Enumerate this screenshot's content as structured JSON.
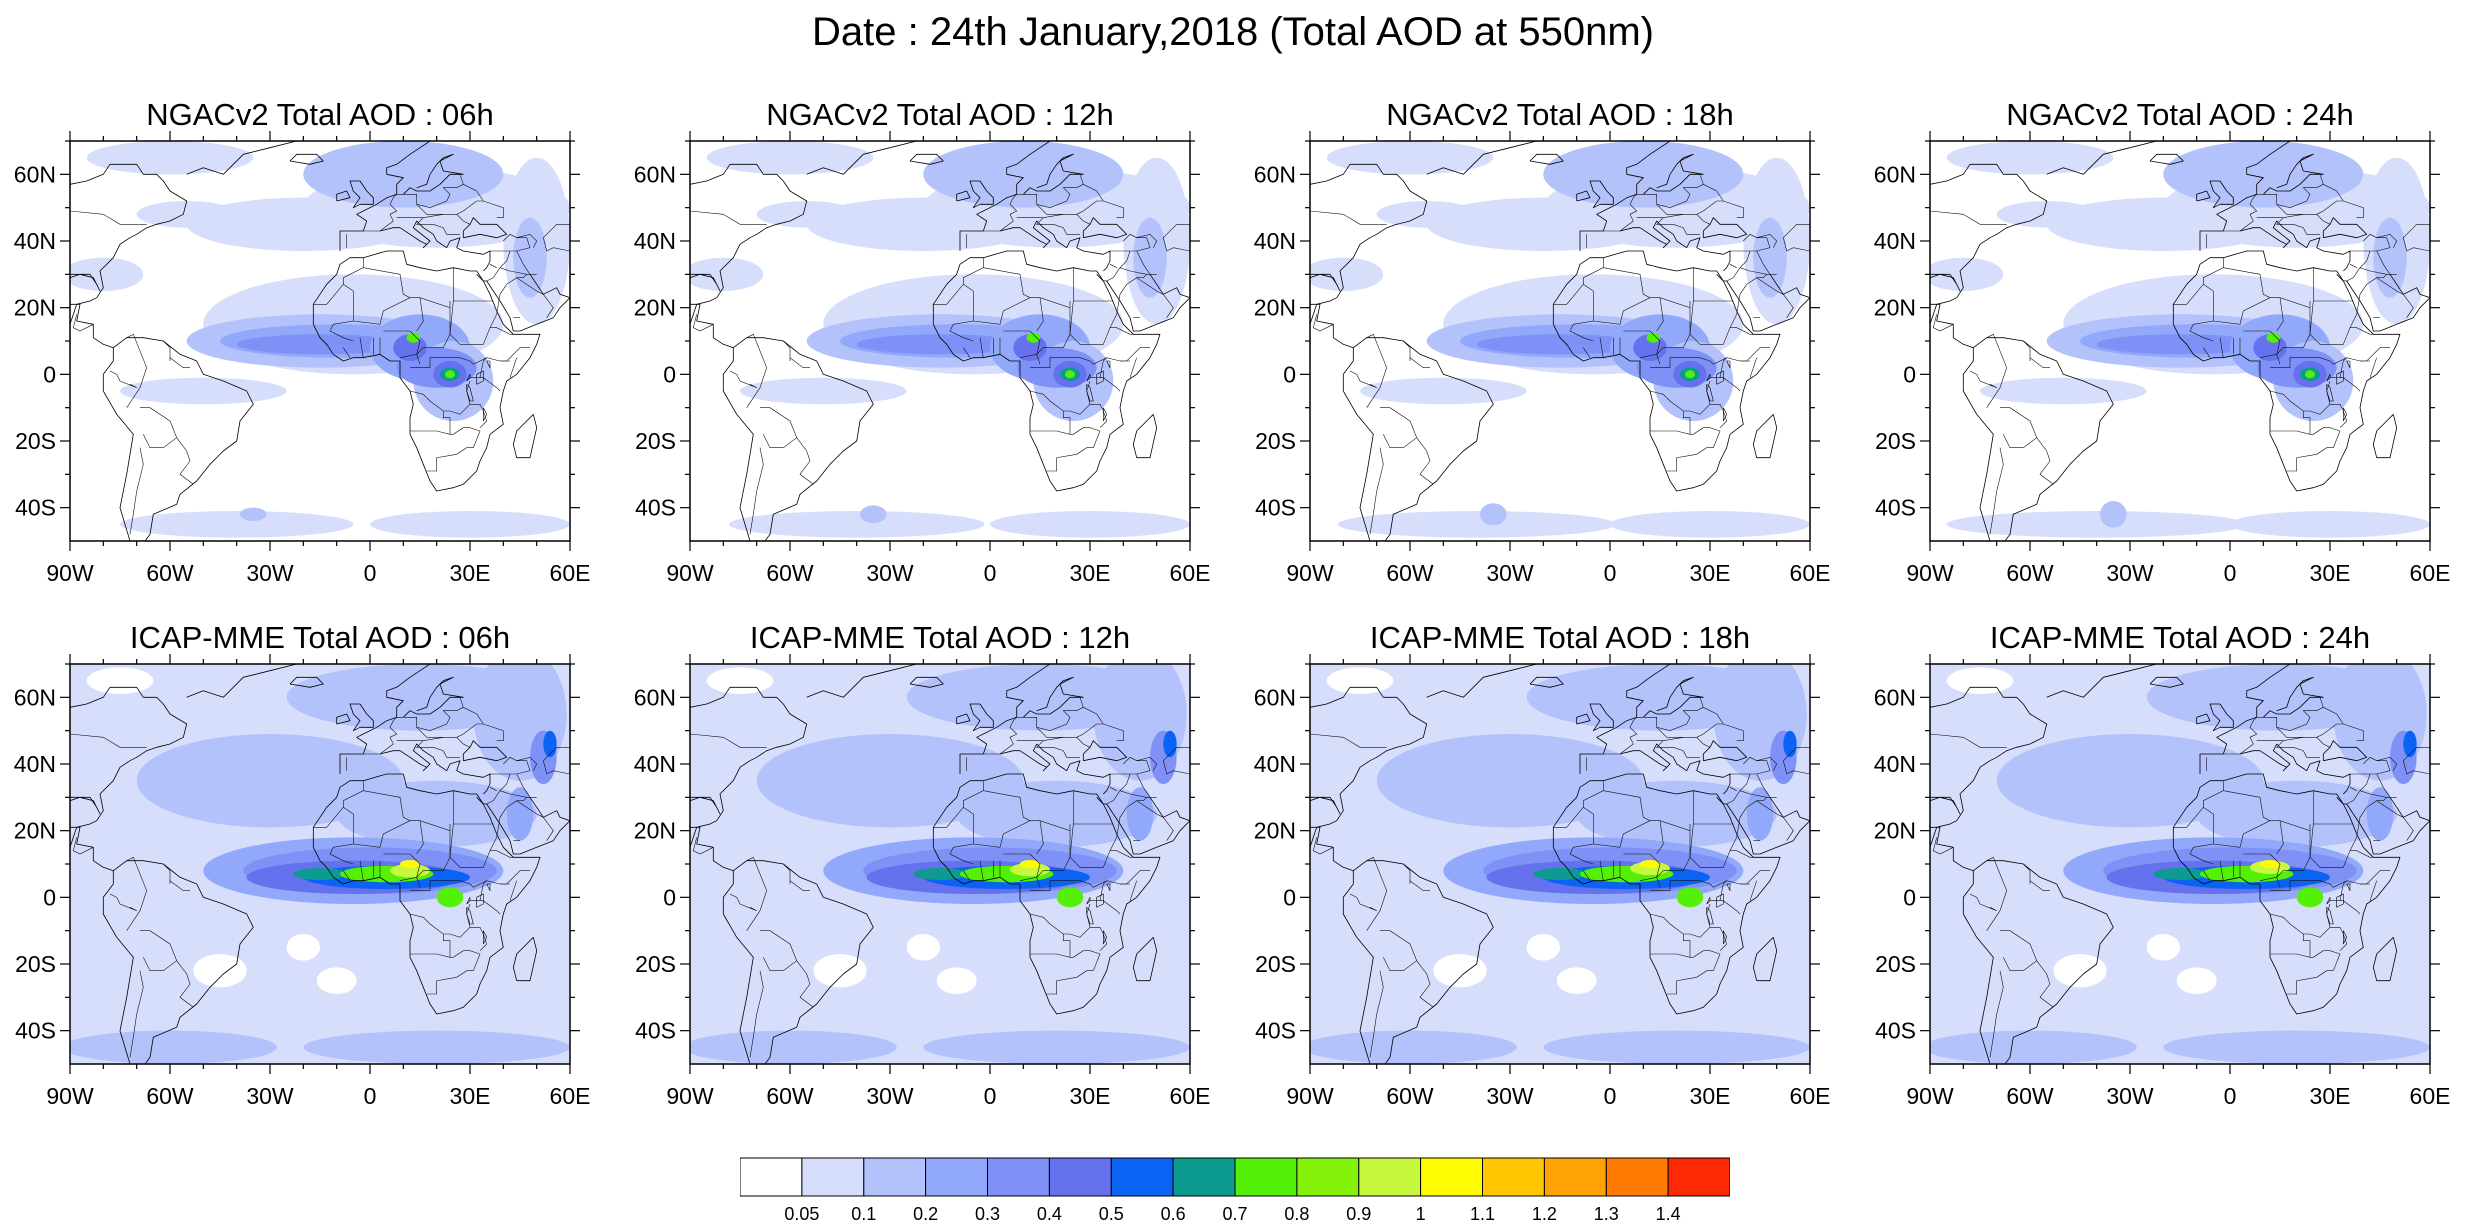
{
  "figure": {
    "title": "Date : 24th January,2018 (Total AOD at 550nm)"
  },
  "axes": {
    "lat_ticks": [
      {
        "lat": 60,
        "label": "60N"
      },
      {
        "lat": 40,
        "label": "40N"
      },
      {
        "lat": 20,
        "label": "20N"
      },
      {
        "lat": 0,
        "label": "0"
      },
      {
        "lat": -20,
        "label": "20S"
      },
      {
        "lat": -40,
        "label": "40S"
      }
    ],
    "lon_ticks": [
      {
        "lon": -90,
        "label": "90W"
      },
      {
        "lon": -60,
        "label": "60W"
      },
      {
        "lon": -30,
        "label": "30W"
      },
      {
        "lon": 0,
        "label": "0"
      },
      {
        "lon": 30,
        "label": "30E"
      },
      {
        "lon": 60,
        "label": "60E"
      }
    ],
    "lon_range": [
      -90,
      60
    ],
    "lat_range": [
      -50,
      70
    ]
  },
  "panels": [
    {
      "title": "NGACv2 Total AOD : 06h",
      "model": "ngac",
      "hour": 6
    },
    {
      "title": "NGACv2 Total AOD : 12h",
      "model": "ngac",
      "hour": 12
    },
    {
      "title": "NGACv2 Total AOD : 18h",
      "model": "ngac",
      "hour": 18
    },
    {
      "title": "NGACv2 Total AOD : 24h",
      "model": "ngac",
      "hour": 24
    },
    {
      "title": "ICAP-MME Total AOD : 06h",
      "model": "icap",
      "hour": 6
    },
    {
      "title": "ICAP-MME Total AOD : 12h",
      "model": "icap",
      "hour": 12
    },
    {
      "title": "ICAP-MME Total AOD : 18h",
      "model": "icap",
      "hour": 18
    },
    {
      "title": "ICAP-MME Total AOD : 24h",
      "model": "icap",
      "hour": 24
    }
  ],
  "colorbar": {
    "colors": [
      "#ffffff",
      "#d6defc",
      "#b4c2fb",
      "#92a8fa",
      "#7f91f6",
      "#6671ee",
      "#0a63f2",
      "#0d9a90",
      "#54f007",
      "#85f20a",
      "#c7f83d",
      "#fffb03",
      "#ffc601",
      "#ffa203",
      "#ff7b01",
      "#fb2a05"
    ],
    "labels": [
      "0.05",
      "0.1",
      "0.2",
      "0.3",
      "0.4",
      "0.5",
      "0.6",
      "0.7",
      "0.8",
      "0.9",
      "1",
      "1.1",
      "1.2",
      "1.3",
      "1.4"
    ]
  }
}
